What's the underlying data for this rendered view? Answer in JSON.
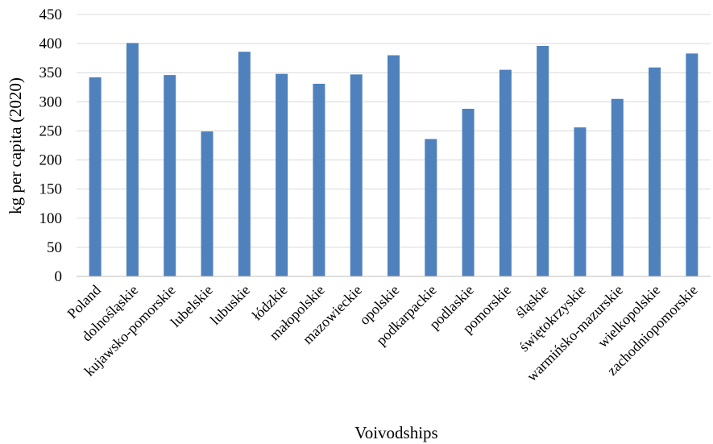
{
  "chart_data": {
    "type": "bar",
    "title": "",
    "xlabel": "Voivodships",
    "ylabel": "kg per capita (2020)",
    "ylim": [
      0,
      450
    ],
    "yticks": [
      0,
      50,
      100,
      150,
      200,
      250,
      300,
      350,
      400,
      450
    ],
    "grid": true,
    "legend": "none",
    "bar_color": "#4f81bd",
    "categories": [
      "Poland",
      "dolnośląskie",
      "kujawsko-pomorskie",
      "lubelskie",
      "lubuskie",
      "łódzkie",
      "małopolskie",
      "mazowieckie",
      "opolskie",
      "podkarpackie",
      "podlaskie",
      "pomorskie",
      "śląskie",
      "świętokrzyskie",
      "warmińsko-mazurskie",
      "wielkopolskie",
      "zachodniopomorskie"
    ],
    "values": [
      342,
      401,
      346,
      249,
      386,
      348,
      331,
      347,
      380,
      236,
      288,
      355,
      396,
      256,
      305,
      359,
      383
    ]
  }
}
